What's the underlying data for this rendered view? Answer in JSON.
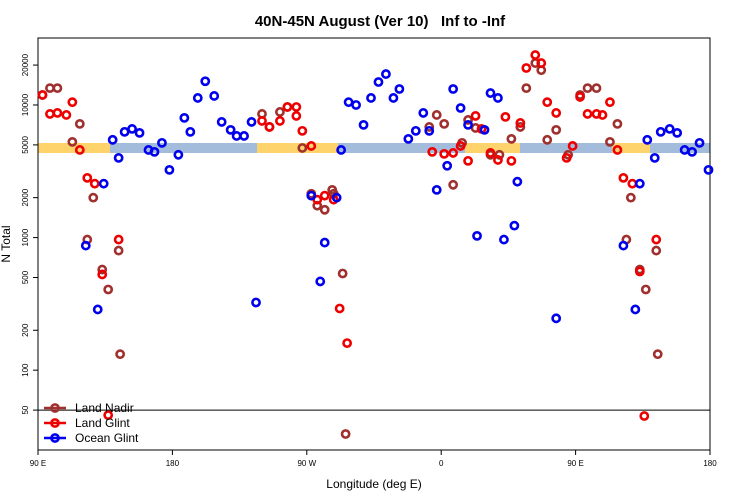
{
  "chart_data": {
    "type": "scatter",
    "title": "40N-45N August (Ver 10)   Inf to -Inf",
    "xlabel": "Longitude (deg E)",
    "ylabel": "N Total",
    "xlim": [
      90,
      540
    ],
    "ylim": [
      25,
      32000
    ],
    "log_y": true,
    "xticks": [
      {
        "value": 90,
        "label": "90 E"
      },
      180,
      {
        "value": 270,
        "label": "90 W"
      },
      {
        "value": 360,
        "label": "0"
      },
      {
        "value": 450,
        "label": "90 E"
      },
      {
        "value": 540,
        "label": "180"
      }
    ],
    "yticks": [
      50,
      100,
      200,
      500,
      1000,
      2000,
      5000,
      10000,
      20000
    ],
    "reference_line": 50,
    "legend": "lower left",
    "series": [
      {
        "name": "Land Nadir",
        "color": "#a0302e",
        "x": [
          93,
          98,
          103,
          113,
          118,
          123,
          127,
          133,
          137,
          144,
          145,
          240,
          245,
          252,
          257,
          267,
          273,
          277,
          282,
          287,
          288,
          294,
          296,
          352,
          357,
          362,
          368,
          374,
          378,
          383,
          393,
          399,
          407,
          413,
          417,
          423,
          427,
          431,
          437,
          445,
          453,
          458,
          464,
          473,
          478,
          484,
          487,
          493,
          497,
          504,
          505
        ],
        "values": [
          11900,
          13400,
          13400,
          5270,
          7200,
          966,
          2000,
          574,
          406,
          798,
          132,
          8560,
          6830,
          8860,
          9660,
          4740,
          2140,
          1740,
          1620,
          2290,
          2140,
          536,
          33,
          6830,
          8410,
          7200,
          2500,
          5180,
          7710,
          6710,
          4210,
          4210,
          5550,
          6830,
          13400,
          20700,
          18300,
          5460,
          6490,
          4210,
          11900,
          13400,
          13400,
          5270,
          7200,
          966,
          2000,
          574,
          406,
          798,
          132
        ]
      },
      {
        "name": "Land Glint",
        "color": "#ee0000",
        "x": [
          93,
          98,
          103,
          109,
          113,
          118,
          123,
          128,
          133,
          137,
          144,
          240,
          245,
          252,
          257,
          263,
          263,
          267,
          273,
          277,
          282,
          288,
          292,
          297,
          354,
          362,
          368,
          373,
          378,
          383,
          387,
          393,
          398,
          403,
          407,
          413,
          417,
          423,
          427,
          431,
          437,
          444,
          448,
          453,
          458,
          464,
          468,
          473,
          478,
          482,
          488,
          493,
          496,
          504
        ],
        "values": [
          11900,
          8560,
          8710,
          8410,
          10500,
          4580,
          2820,
          2550,
          527,
          45.8,
          966,
          7580,
          6830,
          7580,
          9660,
          9660,
          8270,
          6380,
          4910,
          1930,
          2070,
          1930,
          292,
          160,
          4430,
          4280,
          4350,
          4910,
          3790,
          8270,
          6600,
          4350,
          3850,
          8130,
          3790,
          7320,
          19000,
          23800,
          20700,
          10500,
          8710,
          3990,
          4910,
          11500,
          8560,
          8560,
          8410,
          10500,
          4580,
          2820,
          2550,
          555,
          45.1,
          966
        ]
      },
      {
        "name": "Ocean Glint",
        "color": "#0000ee",
        "x": [
          122,
          130,
          134,
          140,
          144,
          148,
          153,
          158,
          164,
          168,
          173,
          178,
          184,
          188,
          192,
          197,
          202,
          208,
          213,
          219,
          223,
          228,
          233,
          236,
          273,
          279,
          282,
          290,
          293,
          298,
          303,
          308,
          313,
          318,
          323,
          328,
          332,
          338,
          343,
          348,
          352,
          357,
          364,
          368,
          373,
          378,
          384,
          389,
          393,
          398,
          402,
          409,
          411,
          437,
          482,
          490,
          493,
          498,
          503,
          507,
          513,
          518,
          523,
          528,
          533,
          539
        ],
        "values": [
          870,
          287,
          2550,
          5460,
          3990,
          6270,
          6600,
          6160,
          4580,
          4430,
          5180,
          3240,
          4210,
          7990,
          6270,
          11300,
          15100,
          11700,
          7450,
          6490,
          5840,
          5840,
          7450,
          324,
          2070,
          467,
          917,
          2000,
          4580,
          10500,
          10000,
          7080,
          11300,
          14900,
          17100,
          11300,
          13200,
          5550,
          6380,
          8710,
          6380,
          2290,
          3480,
          13200,
          9490,
          7080,
          1030,
          6490,
          12300,
          11300,
          966,
          1230,
          2640,
          246,
          870,
          287,
          2550,
          5460,
          3990,
          6270,
          6600,
          6160,
          4580,
          4430,
          5180,
          3240
        ]
      }
    ]
  }
}
